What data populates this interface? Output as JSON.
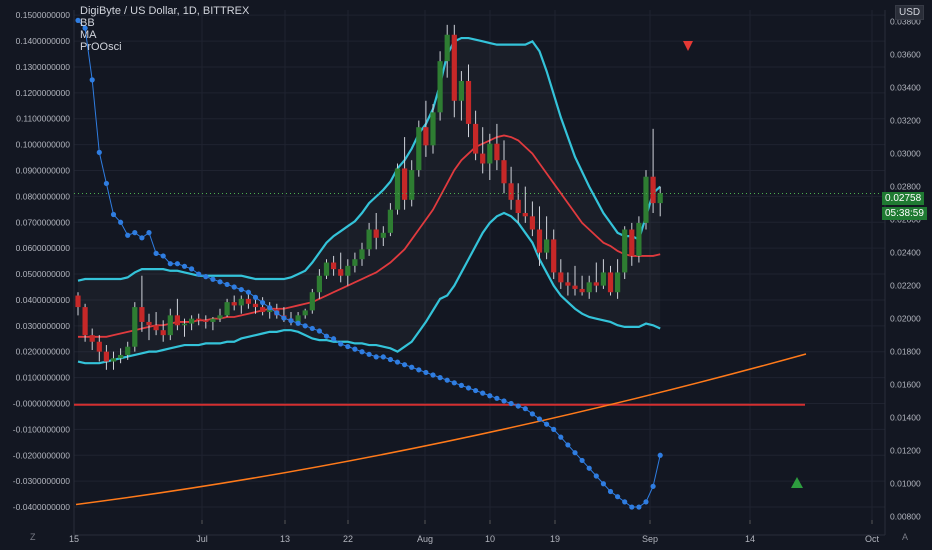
{
  "title": "DigiByte / US Dollar, 1D, BITTREX",
  "legend": [
    "BB",
    "MA",
    "PrOOsci"
  ],
  "currency_label": "USD",
  "price_label": "0.02758",
  "countdown_label": "05:38:59",
  "colors": {
    "background": "#131722",
    "grid": "#1f2330",
    "bb": "#34c3d9",
    "ma": "#e03a3e",
    "osc": "#2f7de1",
    "orange": "#ff7a1a",
    "zero_line": "#d32f2f",
    "up": "#2e7d32",
    "down": "#c62828",
    "axis_text": "#b2b5be",
    "price_badge": "#1f7a32"
  },
  "chart_data": {
    "type": "candlestick",
    "title": "DigiByte / US Dollar, 1D, BITTREX",
    "x_tick_labels": [
      "15",
      "Jul",
      "13",
      "22",
      "Aug",
      "10",
      "19",
      "Sep",
      "14",
      "Oct"
    ],
    "left_axis_labels": [
      "0.1500000000",
      "0.1400000000",
      "0.1300000000",
      "0.1200000000",
      "0.1100000000",
      "0.1000000000",
      "0.0900000000",
      "0.0800000000",
      "0.0700000000",
      "0.0600000000",
      "0.0500000000",
      "0.0400000000",
      "0.0300000000",
      "0.0200000000",
      "0.0100000000",
      "-0.0000000000",
      "-0.0100000000",
      "-0.0200000000",
      "-0.0300000000",
      "-0.0400000000"
    ],
    "left_axis_range": [
      -0.045,
      0.152
    ],
    "right_axis_labels": [
      "0.03800",
      "0.03600",
      "0.03400",
      "0.03200",
      "0.03000",
      "0.02800",
      "0.02600",
      "0.02400",
      "0.02200",
      "0.02000",
      "0.01800",
      "0.01600",
      "0.01400",
      "0.01200",
      "0.01000",
      "0.00800"
    ],
    "right_axis_range": [
      0.0078,
      0.0387
    ],
    "last_price": 0.02758,
    "candles": [
      [
        0.0214,
        0.0216,
        0.0202,
        0.0207
      ],
      [
        0.0207,
        0.0209,
        0.0186,
        0.019
      ],
      [
        0.019,
        0.0194,
        0.0181,
        0.0186
      ],
      [
        0.0186,
        0.019,
        0.0174,
        0.018
      ],
      [
        0.018,
        0.0184,
        0.0169,
        0.0174
      ],
      [
        0.0174,
        0.018,
        0.0169,
        0.0176
      ],
      [
        0.0176,
        0.0182,
        0.0173,
        0.0178
      ],
      [
        0.0178,
        0.0186,
        0.0175,
        0.0183
      ],
      [
        0.0183,
        0.021,
        0.018,
        0.0207
      ],
      [
        0.0207,
        0.0226,
        0.0192,
        0.0198
      ],
      [
        0.0198,
        0.0203,
        0.0187,
        0.0196
      ],
      [
        0.0196,
        0.0204,
        0.019,
        0.0193
      ],
      [
        0.0193,
        0.0199,
        0.0186,
        0.019
      ],
      [
        0.019,
        0.0206,
        0.0187,
        0.0202
      ],
      [
        0.0202,
        0.0212,
        0.0193,
        0.0196
      ],
      [
        0.0196,
        0.02,
        0.0189,
        0.0197
      ],
      [
        0.0197,
        0.0202,
        0.0193,
        0.02
      ],
      [
        0.02,
        0.0203,
        0.0196,
        0.0199
      ],
      [
        0.0199,
        0.0202,
        0.0194,
        0.0198
      ],
      [
        0.0198,
        0.0201,
        0.0193,
        0.02
      ],
      [
        0.02,
        0.0206,
        0.0198,
        0.0202
      ],
      [
        0.0202,
        0.0212,
        0.0201,
        0.021
      ],
      [
        0.021,
        0.0214,
        0.0205,
        0.0208
      ],
      [
        0.0208,
        0.0214,
        0.0203,
        0.0212
      ],
      [
        0.0212,
        0.0216,
        0.0206,
        0.0209
      ],
      [
        0.0209,
        0.0214,
        0.0203,
        0.0207
      ],
      [
        0.0207,
        0.0213,
        0.0202,
        0.0204
      ],
      [
        0.0204,
        0.021,
        0.02,
        0.0206
      ],
      [
        0.0206,
        0.0209,
        0.02,
        0.0202
      ],
      [
        0.0202,
        0.0207,
        0.0198,
        0.02
      ],
      [
        0.02,
        0.0204,
        0.0196,
        0.0198
      ],
      [
        0.0198,
        0.0204,
        0.0197,
        0.0202
      ],
      [
        0.0202,
        0.0206,
        0.02,
        0.0205
      ],
      [
        0.0205,
        0.0218,
        0.0203,
        0.0216
      ],
      [
        0.0216,
        0.023,
        0.0212,
        0.0226
      ],
      [
        0.0226,
        0.0236,
        0.0224,
        0.0234
      ],
      [
        0.0234,
        0.0238,
        0.0226,
        0.023
      ],
      [
        0.023,
        0.024,
        0.0222,
        0.0226
      ],
      [
        0.0226,
        0.0236,
        0.022,
        0.0232
      ],
      [
        0.0232,
        0.024,
        0.0228,
        0.0236
      ],
      [
        0.0236,
        0.0246,
        0.0232,
        0.0242
      ],
      [
        0.0242,
        0.0258,
        0.0238,
        0.0254
      ],
      [
        0.0254,
        0.0264,
        0.0242,
        0.0249
      ],
      [
        0.0249,
        0.0256,
        0.0244,
        0.0252
      ],
      [
        0.0252,
        0.027,
        0.025,
        0.0266
      ],
      [
        0.0266,
        0.0294,
        0.0263,
        0.0291
      ],
      [
        0.0291,
        0.031,
        0.0266,
        0.0272
      ],
      [
        0.0272,
        0.0296,
        0.0268,
        0.029
      ],
      [
        0.029,
        0.032,
        0.0286,
        0.0316
      ],
      [
        0.0316,
        0.0332,
        0.0298,
        0.0305
      ],
      [
        0.0305,
        0.033,
        0.03,
        0.0325
      ],
      [
        0.0325,
        0.0362,
        0.032,
        0.0356
      ],
      [
        0.0356,
        0.0378,
        0.0346,
        0.0372
      ],
      [
        0.0372,
        0.0378,
        0.0322,
        0.0332
      ],
      [
        0.0332,
        0.035,
        0.032,
        0.0344
      ],
      [
        0.0344,
        0.0354,
        0.031,
        0.0318
      ],
      [
        0.0318,
        0.0326,
        0.0296,
        0.03
      ],
      [
        0.03,
        0.0316,
        0.0288,
        0.0294
      ],
      [
        0.0294,
        0.0312,
        0.0284,
        0.0306
      ],
      [
        0.0306,
        0.0318,
        0.029,
        0.0296
      ],
      [
        0.0296,
        0.0308,
        0.0276,
        0.0282
      ],
      [
        0.0282,
        0.0292,
        0.0266,
        0.0272
      ],
      [
        0.0272,
        0.0282,
        0.0258,
        0.0264
      ],
      [
        0.0264,
        0.028,
        0.0258,
        0.0262
      ],
      [
        0.0262,
        0.0271,
        0.025,
        0.0254
      ],
      [
        0.0254,
        0.0268,
        0.0232,
        0.024
      ],
      [
        0.024,
        0.0262,
        0.0236,
        0.0248
      ],
      [
        0.0248,
        0.0254,
        0.0224,
        0.0228
      ],
      [
        0.0228,
        0.0236,
        0.0218,
        0.0222
      ],
      [
        0.0222,
        0.0228,
        0.0214,
        0.022
      ],
      [
        0.022,
        0.0232,
        0.0214,
        0.0218
      ],
      [
        0.0218,
        0.0226,
        0.0214,
        0.0216
      ],
      [
        0.0216,
        0.0226,
        0.0212,
        0.0222
      ],
      [
        0.0222,
        0.0234,
        0.0216,
        0.022
      ],
      [
        0.022,
        0.0236,
        0.0218,
        0.0228
      ],
      [
        0.0228,
        0.0232,
        0.0214,
        0.0216
      ],
      [
        0.0216,
        0.0236,
        0.0212,
        0.0228
      ],
      [
        0.0228,
        0.0256,
        0.0224,
        0.0254
      ],
      [
        0.0254,
        0.0258,
        0.0232,
        0.0238
      ],
      [
        0.0238,
        0.0262,
        0.0234,
        0.0258
      ],
      [
        0.0258,
        0.029,
        0.0254,
        0.0286
      ],
      [
        0.0286,
        0.0315,
        0.0264,
        0.027
      ],
      [
        0.027,
        0.028,
        0.0262,
        0.0276
      ]
    ],
    "series": [
      {
        "name": "BB",
        "axis": "right",
        "values": [
          0.0223,
          0.0224,
          0.0224,
          0.0224,
          0.0224,
          0.0224,
          0.0224,
          0.0225,
          0.0228,
          0.023,
          0.023,
          0.023,
          0.023,
          0.0229,
          0.0229,
          0.0228,
          0.0227,
          0.0226,
          0.0226,
          0.0226,
          0.0226,
          0.0226,
          0.0226,
          0.0226,
          0.0225,
          0.0224,
          0.0224,
          0.0224,
          0.0224,
          0.0224,
          0.0225,
          0.0227,
          0.0229,
          0.0234,
          0.024,
          0.0246,
          0.025,
          0.0253,
          0.0256,
          0.0259,
          0.0264,
          0.027,
          0.0274,
          0.0278,
          0.0283,
          0.0291,
          0.0296,
          0.0303,
          0.0312,
          0.0318,
          0.0327,
          0.0342,
          0.036,
          0.0368,
          0.037,
          0.037,
          0.0369,
          0.0368,
          0.0367,
          0.0366,
          0.0366,
          0.0366,
          0.0366,
          0.0366,
          0.0368,
          0.0362,
          0.035,
          0.0336,
          0.0322,
          0.031,
          0.0298,
          0.0289,
          0.028,
          0.0272,
          0.0264,
          0.0258,
          0.0252,
          0.025,
          0.025,
          0.0248,
          0.0262,
          0.0276,
          0.028
        ]
      },
      {
        "name": "BB",
        "axis": "right",
        "values": [
          0.0174,
          0.0173,
          0.0173,
          0.0173,
          0.0174,
          0.0175,
          0.0176,
          0.0177,
          0.0178,
          0.0179,
          0.018,
          0.018,
          0.0181,
          0.0182,
          0.0183,
          0.0184,
          0.0184,
          0.0184,
          0.0185,
          0.0185,
          0.0185,
          0.0186,
          0.0186,
          0.0188,
          0.0189,
          0.019,
          0.0191,
          0.0192,
          0.0192,
          0.0193,
          0.0193,
          0.0192,
          0.019,
          0.0188,
          0.0187,
          0.0187,
          0.0186,
          0.0186,
          0.0186,
          0.0185,
          0.0185,
          0.0184,
          0.0184,
          0.0183,
          0.0182,
          0.018,
          0.0183,
          0.0186,
          0.0192,
          0.0198,
          0.0205,
          0.0212,
          0.0214,
          0.022,
          0.0228,
          0.0236,
          0.0244,
          0.0252,
          0.0258,
          0.0262,
          0.0264,
          0.0262,
          0.0258,
          0.0252,
          0.0246,
          0.0236,
          0.0228,
          0.022,
          0.0214,
          0.021,
          0.0206,
          0.0203,
          0.0201,
          0.02,
          0.0199,
          0.0198,
          0.0196,
          0.0195,
          0.0195,
          0.0195,
          0.0197,
          0.0196,
          0.0194
        ]
      },
      {
        "name": "MA",
        "axis": "right",
        "values": [
          0.0189,
          0.0189,
          0.0189,
          0.0189,
          0.0189,
          0.019,
          0.0191,
          0.0192,
          0.0193,
          0.0194,
          0.0195,
          0.0196,
          0.0196,
          0.0197,
          0.0198,
          0.0198,
          0.0198,
          0.0199,
          0.0199,
          0.02,
          0.02,
          0.0201,
          0.0201,
          0.0202,
          0.0203,
          0.0204,
          0.0205,
          0.0206,
          0.0206,
          0.0206,
          0.0207,
          0.0208,
          0.0209,
          0.021,
          0.0212,
          0.0214,
          0.0216,
          0.0218,
          0.022,
          0.0222,
          0.0224,
          0.0226,
          0.0228,
          0.0231,
          0.0234,
          0.0238,
          0.0242,
          0.0248,
          0.0254,
          0.026,
          0.0266,
          0.0274,
          0.0282,
          0.029,
          0.0296,
          0.03,
          0.0304,
          0.0306,
          0.0308,
          0.031,
          0.0311,
          0.031,
          0.0308,
          0.0304,
          0.03,
          0.0294,
          0.0288,
          0.0282,
          0.0276,
          0.027,
          0.0264,
          0.0258,
          0.0254,
          0.025,
          0.0246,
          0.0244,
          0.0241,
          0.0239,
          0.0238,
          0.0238,
          0.0238,
          0.0238,
          0.0239
        ]
      },
      {
        "name": "PrOOsci",
        "axis": "left",
        "values": [
          0.148,
          0.145,
          0.125,
          0.097,
          0.085,
          0.073,
          0.07,
          0.065,
          0.066,
          0.064,
          0.066,
          0.058,
          0.057,
          0.054,
          0.054,
          0.053,
          0.052,
          0.05,
          0.049,
          0.048,
          0.047,
          0.046,
          0.045,
          0.044,
          0.043,
          0.041,
          0.039,
          0.037,
          0.035,
          0.033,
          0.032,
          0.031,
          0.03,
          0.029,
          0.028,
          0.026,
          0.025,
          0.023,
          0.022,
          0.021,
          0.02,
          0.019,
          0.018,
          0.018,
          0.017,
          0.016,
          0.015,
          0.014,
          0.013,
          0.012,
          0.011,
          0.01,
          0.009,
          0.008,
          0.007,
          0.006,
          0.005,
          0.004,
          0.003,
          0.002,
          0.001,
          0.0,
          -0.001,
          -0.002,
          -0.004,
          -0.006,
          -0.008,
          -0.01,
          -0.013,
          -0.016,
          -0.019,
          -0.022,
          -0.025,
          -0.028,
          -0.031,
          -0.034,
          -0.036,
          -0.038,
          -0.04,
          -0.04,
          -0.038,
          -0.032,
          -0.02
        ]
      },
      {
        "name": "",
        "axis": "left",
        "values": [
          -0.039,
          -0.024
        ]
      }
    ]
  }
}
